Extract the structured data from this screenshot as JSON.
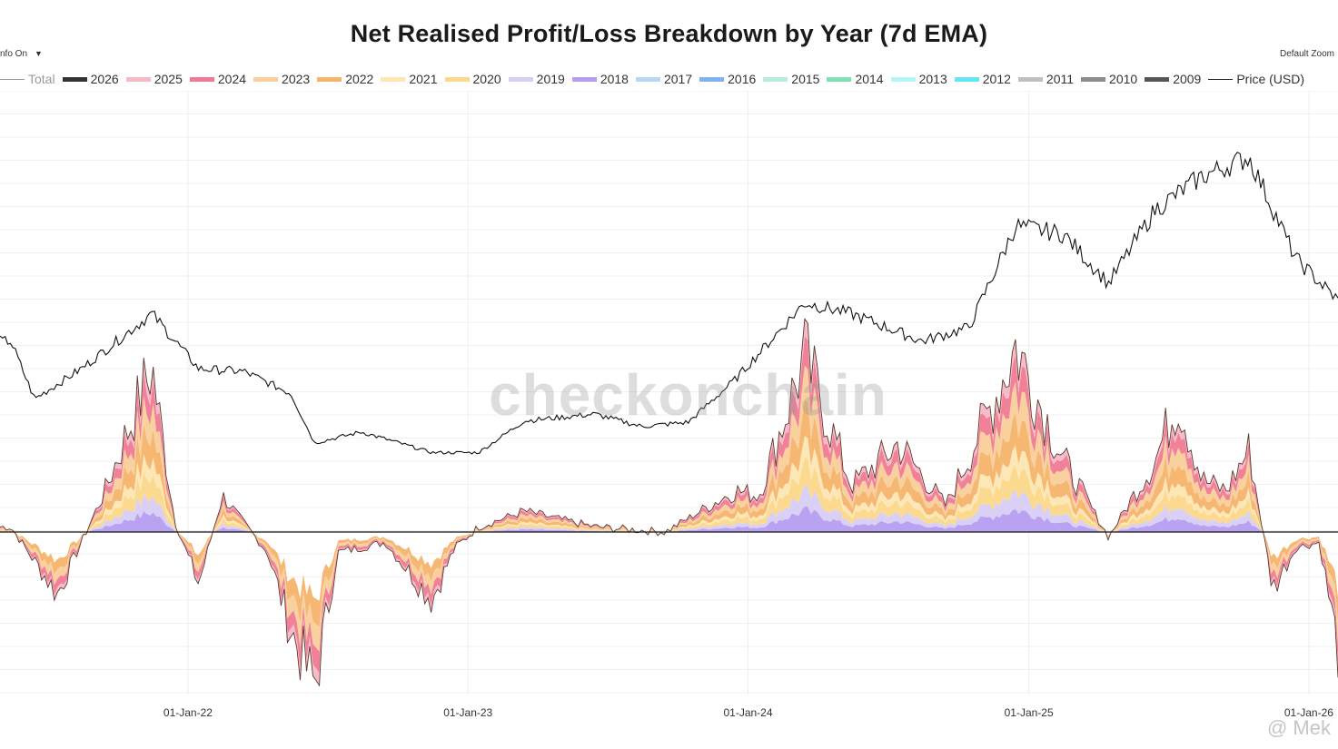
{
  "title": "Net Realised Profit/Loss Breakdown by Year (7d EMA)",
  "controls": {
    "info_toggle": "nfo On",
    "info_caret": "▼",
    "default_zoom": "Default Zoom"
  },
  "legend": [
    {
      "label": "Total",
      "color": "#999999",
      "kind": "line",
      "muted": true
    },
    {
      "label": "2026",
      "color": "#333333",
      "kind": "area"
    },
    {
      "label": "2025",
      "color": "#f7b8c8",
      "kind": "area"
    },
    {
      "label": "2024",
      "color": "#f07a93",
      "kind": "area"
    },
    {
      "label": "2023",
      "color": "#f9cf9a",
      "kind": "area"
    },
    {
      "label": "2022",
      "color": "#f6b36a",
      "kind": "area"
    },
    {
      "label": "2021",
      "color": "#fde6b2",
      "kind": "area"
    },
    {
      "label": "2020",
      "color": "#fbd88a",
      "kind": "area"
    },
    {
      "label": "2019",
      "color": "#d8cdf5",
      "kind": "area"
    },
    {
      "label": "2018",
      "color": "#b59df0",
      "kind": "area"
    },
    {
      "label": "2017",
      "color": "#b9d7f5",
      "kind": "area"
    },
    {
      "label": "2016",
      "color": "#7fb2ef",
      "kind": "area"
    },
    {
      "label": "2015",
      "color": "#b6ecd8",
      "kind": "area"
    },
    {
      "label": "2014",
      "color": "#7fe0b6",
      "kind": "area"
    },
    {
      "label": "2013",
      "color": "#b6f5f7",
      "kind": "area"
    },
    {
      "label": "2012",
      "color": "#5fe8f0",
      "kind": "area"
    },
    {
      "label": "2011",
      "color": "#bfbfbf",
      "kind": "area"
    },
    {
      "label": "2010",
      "color": "#8c8c8c",
      "kind": "area"
    },
    {
      "label": "2009",
      "color": "#555555",
      "kind": "area"
    },
    {
      "label": "Price (USD)",
      "color": "#222222",
      "kind": "line"
    }
  ],
  "watermark": "checkonchain",
  "credit": "@ Mek",
  "chart_data": {
    "type": "area",
    "title": "Net Realised Profit/Loss Breakdown by Year (7d EMA)",
    "x_range": [
      "2021-05-01",
      "2026-02-08"
    ],
    "x_ticks": [
      "01-Jan-22",
      "01-Jan-23",
      "01-Jan-24",
      "01-Jan-25",
      "01-Jan-26"
    ],
    "zero_line": true,
    "grid": true,
    "price_usd_approx": {
      "dates": [
        "2021-05",
        "2021-06",
        "2021-08",
        "2021-11",
        "2022-01",
        "2022-03",
        "2022-05",
        "2022-06",
        "2022-08",
        "2022-11",
        "2023-01",
        "2023-03",
        "2023-06",
        "2023-08",
        "2023-10",
        "2023-12",
        "2024-03",
        "2024-05",
        "2024-08",
        "2024-10",
        "2024-12",
        "2025-02",
        "2025-04",
        "2025-06",
        "2025-08",
        "2025-10",
        "2025-12",
        "2026-02"
      ],
      "values": [
        57000,
        36000,
        47000,
        67000,
        47000,
        46000,
        38000,
        20000,
        24000,
        16500,
        16500,
        28000,
        30500,
        26000,
        27500,
        43000,
        71000,
        67000,
        57000,
        62000,
        99000,
        96000,
        78000,
        105000,
        117000,
        124000,
        87000,
        70000
      ]
    },
    "total_net_realised_pl_usd_b_approx": {
      "dates": [
        "2021-05",
        "2021-07",
        "2021-09",
        "2021-11",
        "2021-12",
        "2022-01",
        "2022-02",
        "2022-04",
        "2022-05",
        "2022-06",
        "2022-07",
        "2022-09",
        "2022-11",
        "2022-12",
        "2023-01",
        "2023-03",
        "2023-06",
        "2023-09",
        "2023-12",
        "2024-01",
        "2024-03",
        "2024-05",
        "2024-07",
        "2024-09",
        "2024-11",
        "2024-12",
        "2025-02",
        "2025-04",
        "2025-06",
        "2025-07",
        "2025-08",
        "2025-09",
        "2025-10",
        "2025-11",
        "2025-12",
        "2026-01",
        "2026-02"
      ],
      "values": [
        0.1,
        -1.2,
        0.8,
        3.2,
        0.2,
        -1.0,
        0.7,
        -0.4,
        -1.9,
        -3.0,
        -0.4,
        -0.2,
        -1.3,
        -0.3,
        0.1,
        0.4,
        0.1,
        0.0,
        0.8,
        0.7,
        3.4,
        0.9,
        1.7,
        0.5,
        2.5,
        3.6,
        1.4,
        -0.1,
        1.4,
        2.6,
        1.0,
        0.8,
        1.6,
        -1.1,
        -0.3,
        -0.2,
        -2.9
      ]
    }
  }
}
